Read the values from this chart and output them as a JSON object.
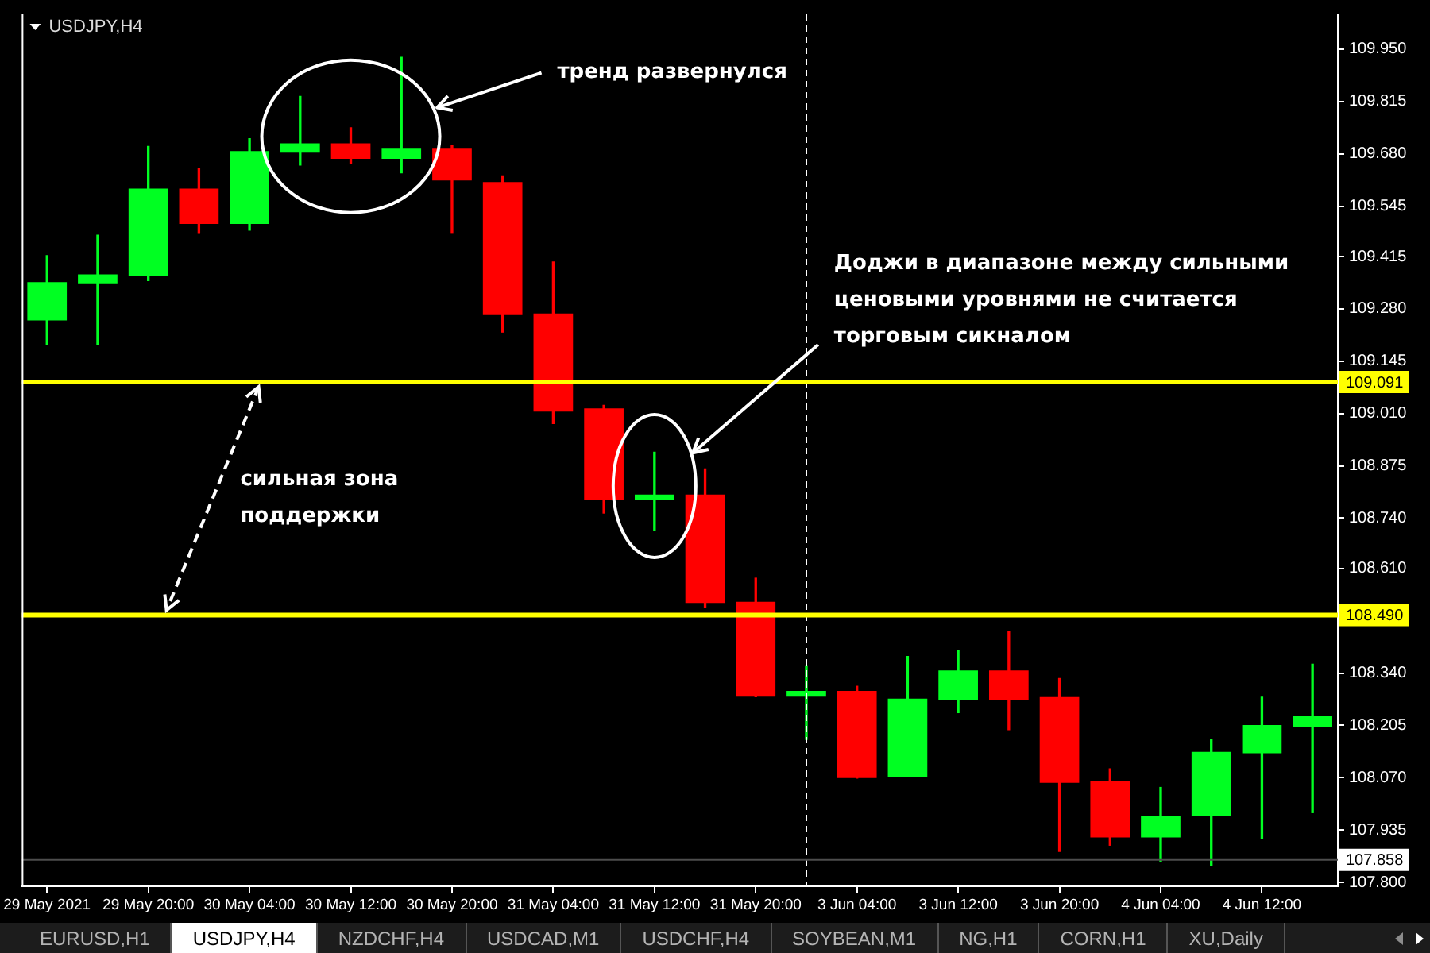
{
  "chart_data": {
    "type": "candlestick",
    "title": "USDJPY,H4",
    "categories": [
      "29 May 2021",
      null,
      "29 May 20:00",
      null,
      "30 May 04:00",
      null,
      "30 May 12:00",
      null,
      "30 May 20:00",
      null,
      "31 May 04:00",
      null,
      "31 May 12:00",
      null,
      "31 May 20:00",
      null,
      "3 Jun 04:00",
      null,
      "3 Jun 12:00",
      null,
      "3 Jun 20:00",
      null,
      "4 Jun 04:00",
      null,
      "4 Jun 12:00",
      null
    ],
    "ohlc": [
      [
        109.25,
        109.417,
        109.189,
        109.349
      ],
      [
        109.346,
        109.47,
        109.189,
        109.369
      ],
      [
        109.366,
        109.699,
        109.353,
        109.59
      ],
      [
        109.59,
        109.643,
        109.475,
        109.499
      ],
      [
        109.499,
        109.719,
        109.483,
        109.687
      ],
      [
        109.683,
        109.828,
        109.651,
        109.707
      ],
      [
        109.707,
        109.747,
        109.655,
        109.667
      ],
      [
        109.667,
        109.929,
        109.631,
        109.695
      ],
      [
        109.695,
        109.702,
        109.475,
        109.611
      ],
      [
        109.607,
        109.623,
        109.22,
        109.264
      ],
      [
        109.268,
        109.401,
        108.984,
        109.015
      ],
      [
        109.023,
        109.031,
        108.753,
        108.787
      ],
      [
        108.787,
        108.91,
        108.709,
        108.801
      ],
      [
        108.801,
        108.867,
        108.51,
        108.521
      ],
      [
        108.524,
        108.585,
        108.279,
        108.279
      ],
      [
        108.279,
        108.359,
        108.169,
        108.294
      ],
      [
        108.294,
        108.306,
        108.069,
        108.069
      ],
      [
        108.073,
        108.383,
        108.073,
        108.274
      ],
      [
        108.27,
        108.399,
        108.238,
        108.347
      ],
      [
        108.347,
        108.447,
        108.194,
        108.27
      ],
      [
        108.278,
        108.326,
        107.88,
        108.057
      ],
      [
        108.061,
        108.093,
        107.896,
        107.916
      ],
      [
        107.916,
        108.045,
        107.855,
        107.972
      ],
      [
        107.972,
        108.169,
        107.843,
        108.137
      ],
      [
        108.133,
        108.278,
        107.912,
        108.206
      ],
      [
        108.202,
        108.363,
        107.98,
        108.23
      ]
    ],
    "colors": [
      "#00ff22",
      "#00ff22",
      "#00ff22",
      "#ff0000",
      "#00ff22",
      "#00ff22",
      "#ff0000",
      "#00ff22",
      "#ff0000",
      "#ff0000",
      "#ff0000",
      "#ff0000",
      "#00ff22",
      "#ff0000",
      "#ff0000",
      "#00ff22",
      "#ff0000",
      "#00ff22",
      "#00ff22",
      "#ff0000",
      "#ff0000",
      "#ff0000",
      "#00ff22",
      "#00ff22",
      "#00ff22",
      "#00ff22"
    ],
    "ylim": [
      107.79,
      110.04
    ],
    "yticks": [
      {
        "value": 109.95,
        "label": "109.950"
      },
      109.815,
      {
        "value": 109.68,
        "label": "109.680"
      },
      109.545,
      109.415,
      {
        "value": 109.28,
        "label": "109.280"
      },
      109.145,
      {
        "value": 109.01,
        "label": "109.010"
      },
      108.875,
      {
        "value": 108.74,
        "label": "108.740"
      },
      {
        "value": 108.61,
        "label": "108.610"
      },
      {
        "value": 108.475,
        "label": null
      },
      {
        "value": 108.34,
        "label": "108.340"
      },
      108.205,
      {
        "value": 108.07,
        "label": "108.070"
      },
      107.935,
      {
        "value": 107.8,
        "label": "107.800"
      }
    ],
    "ref_lines": [
      {
        "axis": "y",
        "value": 109.091,
        "label": "109.091",
        "color": "#ffff00"
      },
      {
        "axis": "y",
        "value": 108.49,
        "label": "108.490",
        "color": "#ffff00"
      },
      {
        "axis": "y",
        "value": 107.858,
        "label": "107.858",
        "color": "#4d4d4d"
      }
    ],
    "annotations": [
      "тренд развернулся",
      "Доджи в диапазоне между сильными\nценовыми уровнями не считается\nторговым сикналом",
      "сильная зона\nподдержки",
      "EURUSD,H1",
      "USDJPY,H4",
      "NZDCHF,H4",
      "USDCAD,M1",
      "USDCHF,H4",
      "SOYBEAN,M1",
      "NG,H1",
      "CORN,H1",
      "XU,Daily"
    ]
  }
}
